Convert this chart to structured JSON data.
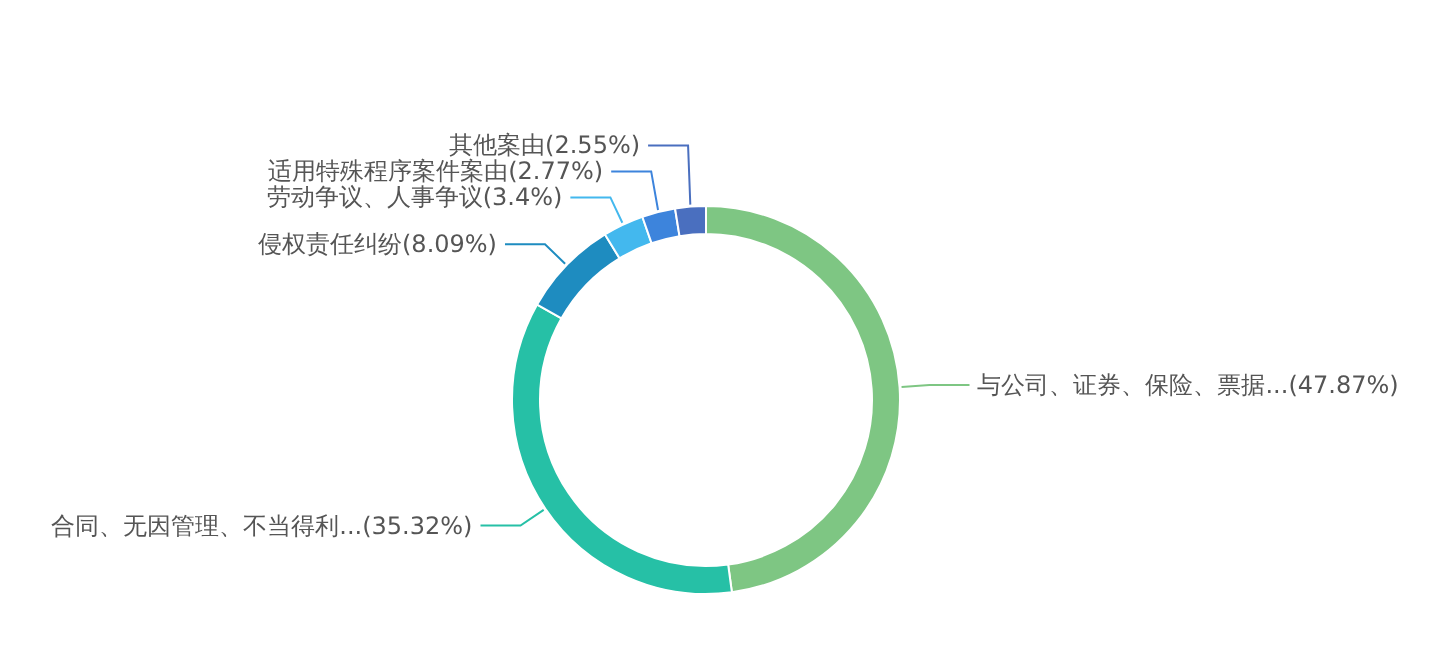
{
  "chart_data": {
    "type": "donut",
    "categories": [
      "与公司、证券、保险、票据...",
      "合同、无因管理、不当得利...",
      "侵权责任纠纷",
      "劳动争议、人事争议",
      "适用特殊程序案件案由",
      "其他案由"
    ],
    "values": [
      47.87,
      35.32,
      8.09,
      3.4,
      2.77,
      2.55
    ],
    "value_labels": [
      "(47.87%)",
      "(35.32%)",
      "(8.09%)",
      "(3.4%)",
      "(2.77%)",
      "(2.55%)"
    ],
    "colors": [
      "#7ec683",
      "#26c0a6",
      "#1e8cc0",
      "#43b8ee",
      "#3d84dc",
      "#4a6fbf"
    ]
  }
}
